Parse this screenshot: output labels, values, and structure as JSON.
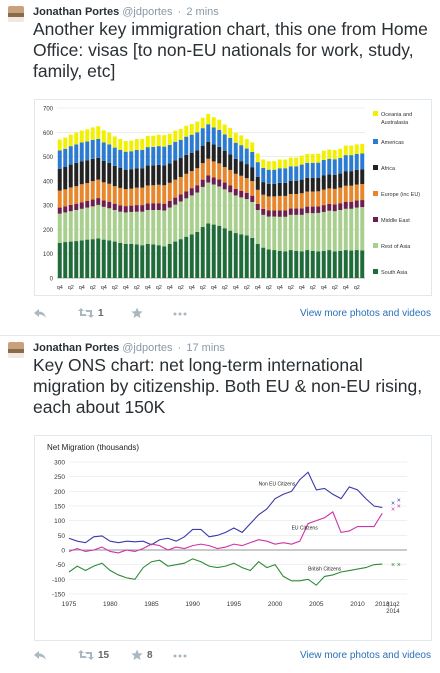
{
  "tweets": [
    {
      "name": "Jonathan Portes",
      "handle": "@jdportes",
      "time": "2 mins",
      "text": "Another key immigration chart, this one from Home Office: visas [to non-EU nationals for work, study, family, etc]",
      "retweets": "1",
      "favorites": "",
      "more_link": "View more photos and videos"
    },
    {
      "name": "Jonathan Portes",
      "handle": "@jdportes",
      "time": "17 mins",
      "text": "Key ONS chart: net long-term international migration by citizenship. Both EU & non-EU rising, each about 150K",
      "retweets": "15",
      "favorites": "8",
      "more_link": "View more photos and videos"
    }
  ],
  "icons": [
    "reply-icon",
    "retweet-icon",
    "favorite-icon",
    "more-icon"
  ],
  "chart_data": [
    {
      "type": "bar",
      "stacked": true,
      "title": "",
      "ylim": [
        0,
        700
      ],
      "yticks": [
        0,
        100,
        200,
        300,
        400,
        500,
        600,
        700
      ],
      "categories": [
        "q4",
        "q1",
        "q2",
        "q3",
        "q4",
        "q1",
        "q2",
        "q3",
        "q4",
        "q1",
        "q2",
        "q3",
        "q4",
        "q1",
        "q2",
        "q3",
        "q4",
        "q1",
        "q2",
        "q3",
        "q4",
        "q1",
        "q2",
        "q3",
        "q4",
        "q1",
        "q2",
        "q3",
        "q4",
        "q1",
        "q2",
        "q3",
        "q4",
        "q1",
        "q2",
        "q3",
        "q4",
        "q1",
        "q2",
        "q3",
        "q4",
        "q1",
        "q2",
        "q3",
        "q4",
        "q1",
        "q2",
        "q3",
        "q4",
        "q1",
        "q2",
        "q3",
        "q4",
        "q1",
        "q2",
        "q3"
      ],
      "legend_position": "right",
      "series": [
        {
          "name": "South Asia",
          "color": "#1f6b3a",
          "values": [
            145,
            148,
            150,
            152,
            155,
            158,
            160,
            163,
            158,
            155,
            150,
            145,
            140,
            140,
            138,
            135,
            140,
            138,
            135,
            130,
            140,
            150,
            160,
            170,
            180,
            190,
            210,
            225,
            220,
            215,
            205,
            195,
            185,
            180,
            175,
            165,
            140,
            125,
            118,
            115,
            112,
            110,
            115,
            112,
            110,
            115,
            112,
            110,
            112,
            115,
            110,
            112,
            115,
            113,
            115,
            114
          ]
        },
        {
          "name": "Rest of Asia",
          "color": "#a9cf8f",
          "values": [
            120,
            122,
            125,
            128,
            130,
            132,
            135,
            138,
            135,
            132,
            130,
            128,
            130,
            132,
            135,
            138,
            140,
            142,
            145,
            148,
            150,
            152,
            155,
            158,
            160,
            162,
            165,
            168,
            165,
            162,
            160,
            158,
            155,
            152,
            150,
            148,
            140,
            135,
            135,
            138,
            140,
            142,
            145,
            148,
            150,
            152,
            155,
            158,
            160,
            162,
            165,
            168,
            170,
            172,
            175,
            178
          ]
        },
        {
          "name": "Middle East",
          "color": "#6b1f4f",
          "values": [
            25,
            25,
            26,
            26,
            27,
            27,
            28,
            28,
            27,
            27,
            26,
            26,
            26,
            26,
            27,
            27,
            27,
            28,
            28,
            28,
            28,
            29,
            29,
            29,
            30,
            30,
            30,
            30,
            29,
            29,
            28,
            28,
            27,
            27,
            26,
            26,
            25,
            25,
            25,
            25,
            26,
            26,
            26,
            26,
            27,
            27,
            27,
            27,
            28,
            28,
            28,
            28,
            29,
            29,
            29,
            29
          ]
        },
        {
          "name": "Europe (inc EU)",
          "color": "#e8862c",
          "values": [
            70,
            70,
            72,
            72,
            74,
            74,
            76,
            76,
            74,
            74,
            72,
            72,
            70,
            70,
            72,
            72,
            74,
            74,
            76,
            76,
            74,
            74,
            72,
            72,
            70,
            70,
            68,
            68,
            66,
            66,
            64,
            64,
            62,
            62,
            60,
            60,
            58,
            58,
            58,
            58,
            60,
            60,
            60,
            60,
            62,
            62,
            62,
            62,
            64,
            64,
            64,
            64,
            66,
            66,
            66,
            66
          ]
        },
        {
          "name": "Africa",
          "color": "#222222",
          "values": [
            90,
            92,
            94,
            96,
            95,
            94,
            92,
            90,
            88,
            86,
            84,
            82,
            80,
            80,
            80,
            80,
            82,
            82,
            82,
            82,
            80,
            80,
            78,
            78,
            76,
            74,
            72,
            70,
            70,
            68,
            66,
            64,
            62,
            60,
            58,
            56,
            54,
            52,
            52,
            52,
            54,
            54,
            54,
            54,
            56,
            56,
            56,
            56,
            58,
            58,
            58,
            58,
            60,
            60,
            60,
            60
          ]
        },
        {
          "name": "Americas",
          "color": "#2b7bd0",
          "values": [
            75,
            75,
            76,
            76,
            77,
            77,
            78,
            78,
            76,
            76,
            75,
            75,
            74,
            74,
            75,
            75,
            76,
            76,
            77,
            77,
            76,
            76,
            75,
            75,
            74,
            74,
            72,
            72,
            70,
            70,
            68,
            68,
            66,
            66,
            64,
            64,
            60,
            58,
            58,
            58,
            60,
            60,
            60,
            60,
            62,
            62,
            62,
            62,
            64,
            64,
            64,
            64,
            66,
            66,
            66,
            66
          ]
        },
        {
          "name": "Oceania and Australasia",
          "color": "#f2f000",
          "values": [
            45,
            46,
            47,
            48,
            49,
            50,
            51,
            52,
            50,
            48,
            46,
            44,
            44,
            44,
            45,
            45,
            46,
            46,
            47,
            47,
            46,
            46,
            45,
            45,
            44,
            44,
            43,
            43,
            42,
            42,
            41,
            41,
            40,
            40,
            39,
            39,
            36,
            35,
            35,
            35,
            36,
            36,
            36,
            36,
            37,
            37,
            37,
            37,
            38,
            38,
            38,
            38,
            39,
            39,
            39,
            39
          ]
        }
      ]
    },
    {
      "type": "line",
      "title": "Net Migration (thousands)",
      "ylim": [
        -150,
        300
      ],
      "yticks": [
        -150,
        -100,
        -50,
        0,
        50,
        100,
        150,
        200,
        250,
        300
      ],
      "xlim": [
        1975,
        2016
      ],
      "xticks": [
        "1975",
        "1980",
        "1985",
        "1990",
        "1995",
        "2000",
        "2005",
        "2010",
        "2013"
      ],
      "xtick_extra": [
        "q1",
        "q2",
        "2014"
      ],
      "series": [
        {
          "name": "Non EU Citizens",
          "color": "#3a3aaa",
          "x": [
            1975,
            1976,
            1977,
            1978,
            1979,
            1980,
            1981,
            1982,
            1983,
            1984,
            1985,
            1986,
            1987,
            1988,
            1989,
            1990,
            1991,
            1992,
            1993,
            1994,
            1995,
            1996,
            1997,
            1998,
            1999,
            2000,
            2001,
            2002,
            2003,
            2004,
            2005,
            2006,
            2007,
            2008,
            2009,
            2010,
            2011,
            2012,
            2013
          ],
          "y": [
            40,
            30,
            25,
            45,
            48,
            30,
            25,
            30,
            28,
            30,
            18,
            35,
            40,
            30,
            45,
            70,
            70,
            45,
            50,
            60,
            75,
            60,
            90,
            120,
            140,
            175,
            190,
            200,
            240,
            265,
            205,
            210,
            190,
            175,
            215,
            205,
            175,
            150,
            145
          ]
        },
        {
          "name": "EU Citizens",
          "color": "#cc33aa",
          "x": [
            1975,
            1976,
            1977,
            1978,
            1979,
            1980,
            1981,
            1982,
            1983,
            1984,
            1985,
            1986,
            1987,
            1988,
            1989,
            1990,
            1991,
            1992,
            1993,
            1994,
            1995,
            1996,
            1997,
            1998,
            1999,
            2000,
            2001,
            2002,
            2003,
            2004,
            2005,
            2006,
            2007,
            2008,
            2009,
            2010,
            2011,
            2012,
            2013
          ],
          "y": [
            -5,
            5,
            -5,
            0,
            10,
            -5,
            -10,
            0,
            -5,
            5,
            20,
            15,
            0,
            10,
            5,
            15,
            20,
            15,
            5,
            10,
            20,
            15,
            25,
            35,
            30,
            20,
            25,
            20,
            30,
            90,
            100,
            110,
            130,
            60,
            65,
            80,
            80,
            80,
            125
          ]
        },
        {
          "name": "British Citizens",
          "color": "#2e8b3a",
          "x": [
            1975,
            1976,
            1977,
            1978,
            1979,
            1980,
            1981,
            1982,
            1983,
            1984,
            1985,
            1986,
            1987,
            1988,
            1989,
            1990,
            1991,
            1992,
            1993,
            1994,
            1995,
            1996,
            1997,
            1998,
            1999,
            2000,
            2001,
            2002,
            2003,
            2004,
            2005,
            2006,
            2007,
            2008,
            2009,
            2010,
            2011,
            2012,
            2013
          ],
          "y": [
            -75,
            -55,
            -70,
            -55,
            -45,
            -70,
            -85,
            -95,
            -100,
            -60,
            -40,
            -35,
            -55,
            -50,
            -45,
            -30,
            -40,
            -55,
            -60,
            -55,
            -45,
            -60,
            -70,
            -40,
            -60,
            -50,
            -90,
            -105,
            -105,
            -100,
            -120,
            -90,
            -85,
            -75,
            -70,
            -65,
            -60,
            -50,
            -48
          ]
        }
      ],
      "markers": [
        {
          "series": "Non EU Citizens",
          "x": [
            2014.3,
            2015
          ],
          "y": [
            160,
            170
          ],
          "color": "#3a3aaa"
        },
        {
          "series": "EU Citizens",
          "x": [
            2014.3,
            2015
          ],
          "y": [
            140,
            150
          ],
          "color": "#cc33aa"
        },
        {
          "series": "British Citizens",
          "x": [
            2014.3,
            2015
          ],
          "y": [
            -50,
            -50
          ],
          "color": "#2e8b3a"
        }
      ]
    }
  ]
}
